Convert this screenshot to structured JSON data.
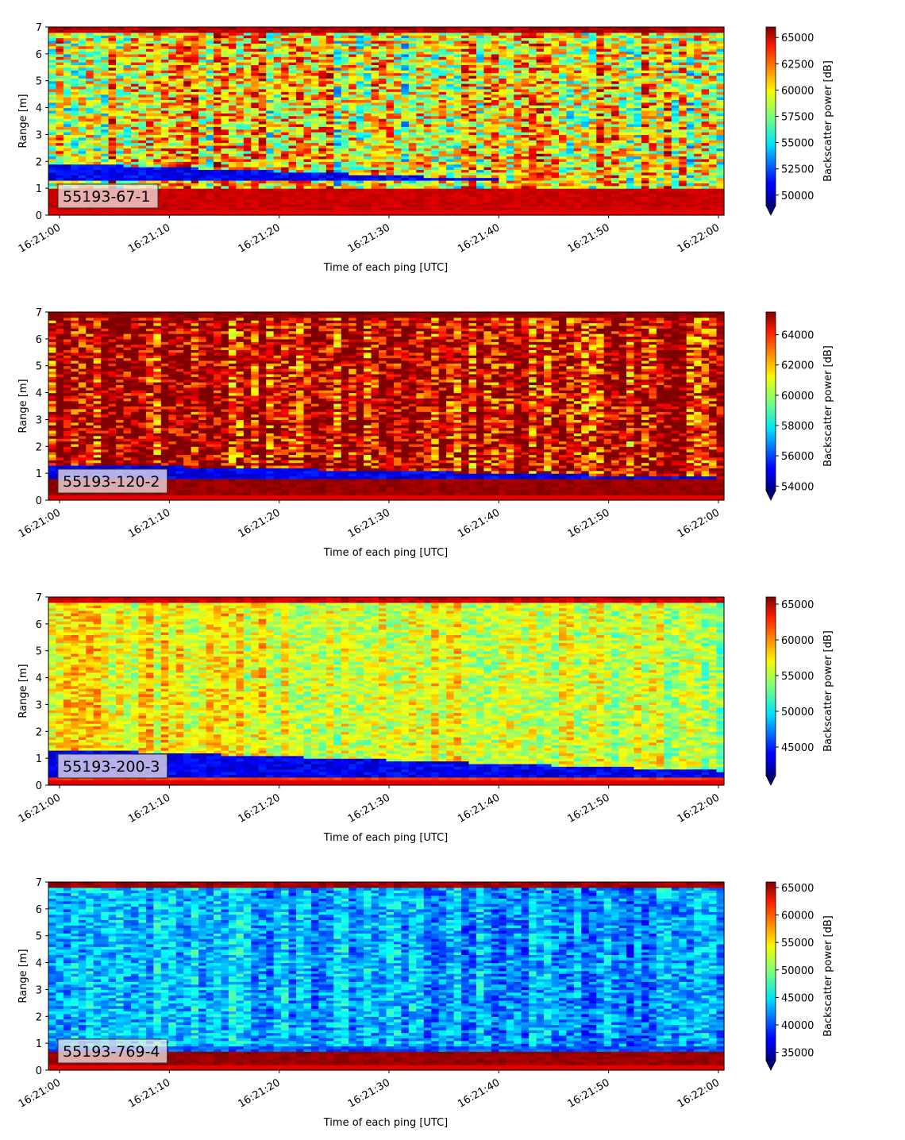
{
  "chart_data": [
    {
      "type": "heatmap",
      "label": "55193-67-1",
      "xlabel": "Time of each ping [UTC]",
      "ylabel": "Range [m]",
      "colorbar_label": "Backscatter power [dB]",
      "x_ticks": [
        "16:21:00",
        "16:21:10",
        "16:21:20",
        "16:21:30",
        "16:21:40",
        "16:21:50",
        "16:22:00"
      ],
      "y_ticks": [
        "0",
        "1",
        "2",
        "3",
        "4",
        "5",
        "6",
        "7"
      ],
      "ylim": [
        0,
        7
      ],
      "colorbar_ticks": [
        50000,
        52500,
        55000,
        57500,
        60000,
        62500,
        65000
      ],
      "colorbar_range": [
        49000,
        66000
      ],
      "colorbar_tick_labels": [
        "50000",
        "52500",
        "55000",
        "57500",
        "60000",
        "62500",
        "65000"
      ],
      "colormap": "jet",
      "profile": {
        "base": 0.62,
        "noise": 0.32,
        "top_band": 0.95,
        "bottom_band_to": 1.0,
        "bottom_band_value": 0.95,
        "low_band_start": 1.25,
        "low_band_end": 1.95,
        "low_band_end_final": 1.05,
        "low_band_value": 0.06,
        "trend": 0.0,
        "seed": 11
      }
    },
    {
      "type": "heatmap",
      "label": "55193-120-2",
      "xlabel": "Time of each ping [UTC]",
      "ylabel": "Range [m]",
      "colorbar_label": "Backscatter power [dB]",
      "x_ticks": [
        "16:21:00",
        "16:21:10",
        "16:21:20",
        "16:21:30",
        "16:21:40",
        "16:21:50",
        "16:22:00"
      ],
      "y_ticks": [
        "0",
        "1",
        "2",
        "3",
        "4",
        "5",
        "6",
        "7"
      ],
      "ylim": [
        0,
        7
      ],
      "colorbar_ticks": [
        54000,
        56000,
        58000,
        60000,
        62000,
        64000
      ],
      "colorbar_range": [
        53700,
        65500
      ],
      "colorbar_tick_labels": [
        "54000",
        "56000",
        "58000",
        "60000",
        "62000",
        "64000"
      ],
      "colormap": "jet",
      "profile": {
        "base": 0.93,
        "noise": 0.3,
        "top_band": 1.0,
        "bottom_band_to": 0.75,
        "bottom_band_value": 1.0,
        "low_band_start": 0.75,
        "low_band_end": 1.35,
        "low_band_end_final": 0.85,
        "low_band_value": 0.05,
        "trend": 0.0,
        "seed": 23
      }
    },
    {
      "type": "heatmap",
      "label": "55193-200-3",
      "xlabel": "Time of each ping [UTC]",
      "ylabel": "Range [m]",
      "colorbar_label": "Backscatter power [dB]",
      "x_ticks": [
        "16:21:00",
        "16:21:10",
        "16:21:20",
        "16:21:30",
        "16:21:40",
        "16:21:50",
        "16:22:00"
      ],
      "y_ticks": [
        "0",
        "1",
        "2",
        "3",
        "4",
        "5",
        "6",
        "7"
      ],
      "ylim": [
        0,
        7
      ],
      "colorbar_ticks": [
        45000,
        50000,
        55000,
        60000,
        65000
      ],
      "colorbar_range": [
        41000,
        66000
      ],
      "colorbar_tick_labels": [
        "45000",
        "50000",
        "55000",
        "60000",
        "65000"
      ],
      "colormap": "jet",
      "profile": {
        "base": 0.64,
        "noise": 0.14,
        "top_band": 0.92,
        "bottom_band_to": 0.3,
        "bottom_band_value": 0.85,
        "low_band_start": 0.3,
        "low_band_end": 1.35,
        "low_band_end_final": 0.55,
        "low_band_value": 0.05,
        "trend": -0.08,
        "seed": 37
      }
    },
    {
      "type": "heatmap",
      "label": "55193-769-4",
      "xlabel": "Time of each ping [UTC]",
      "ylabel": "Range [m]",
      "colorbar_label": "Backscatter power [dB]",
      "x_ticks": [
        "16:21:00",
        "16:21:10",
        "16:21:20",
        "16:21:30",
        "16:21:40",
        "16:21:50",
        "16:22:00"
      ],
      "y_ticks": [
        "0",
        "1",
        "2",
        "3",
        "4",
        "5",
        "6",
        "7"
      ],
      "ylim": [
        0,
        7
      ],
      "colorbar_ticks": [
        35000,
        40000,
        45000,
        50000,
        55000,
        60000,
        65000
      ],
      "colorbar_range": [
        33500,
        66000
      ],
      "colorbar_tick_labels": [
        "35000",
        "40000",
        "45000",
        "50000",
        "55000",
        "60000",
        "65000"
      ],
      "colormap": "jet",
      "profile": {
        "base": 0.33,
        "noise": 0.14,
        "top_band": 0.97,
        "bottom_band_to": 0.7,
        "bottom_band_value": 1.0,
        "low_band_start": 0.7,
        "low_band_end": 0.95,
        "low_band_end_final": 0.95,
        "low_band_value": 0.15,
        "trend": -0.07,
        "seed": 53
      }
    }
  ]
}
